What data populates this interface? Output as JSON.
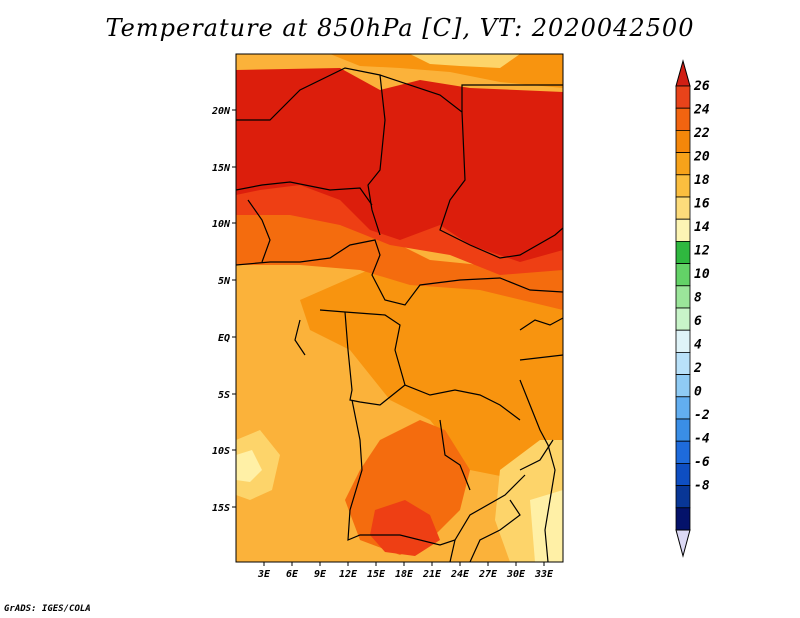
{
  "title": "Temperature at 850hPa [C], VT: 2020042500",
  "credit": "GrADS: IGES/COLA",
  "map": {
    "lat_labels": [
      "20N",
      "15N",
      "10N",
      "5N",
      "EQ",
      "5S",
      "10S",
      "15S"
    ],
    "lon_labels": [
      "3E",
      "6E",
      "9E",
      "12E",
      "15E",
      "18E",
      "21E",
      "24E",
      "27E",
      "30E",
      "33E"
    ],
    "lon_range_deg": [
      0,
      35
    ],
    "lat_range_deg": [
      -20,
      25
    ]
  },
  "colorbar": {
    "labels": [
      "26",
      "24",
      "22",
      "20",
      "18",
      "16",
      "14",
      "12",
      "10",
      "8",
      "6",
      "4",
      "2",
      "0",
      "-2",
      "-4",
      "-6",
      "-8"
    ],
    "colors_top_to_bottom": [
      "#e8431a",
      "#f26410",
      "#f5870a",
      "#f7a21a",
      "#fbbe3f",
      "#fddc7b",
      "#fdf5b4",
      "#2fb83f",
      "#63d267",
      "#9be59a",
      "#c8f4c9",
      "#dff3f8",
      "#b9e1f9",
      "#8fcbf4",
      "#62aef0",
      "#3a8ee6",
      "#1e6bdc",
      "#0e4ec2",
      "#083696",
      "#04126a"
    ],
    "upper_arrow_color": "#d11f14",
    "lower_arrow_color": "#dcd9f5"
  },
  "field_colors": {
    "c26": "#dc1e0c",
    "c24": "#ee3f14",
    "c22": "#f46c0e",
    "c20": "#f8940f",
    "c18": "#fbb23a",
    "c16": "#fdd46a",
    "c14": "#fff0a6"
  }
}
